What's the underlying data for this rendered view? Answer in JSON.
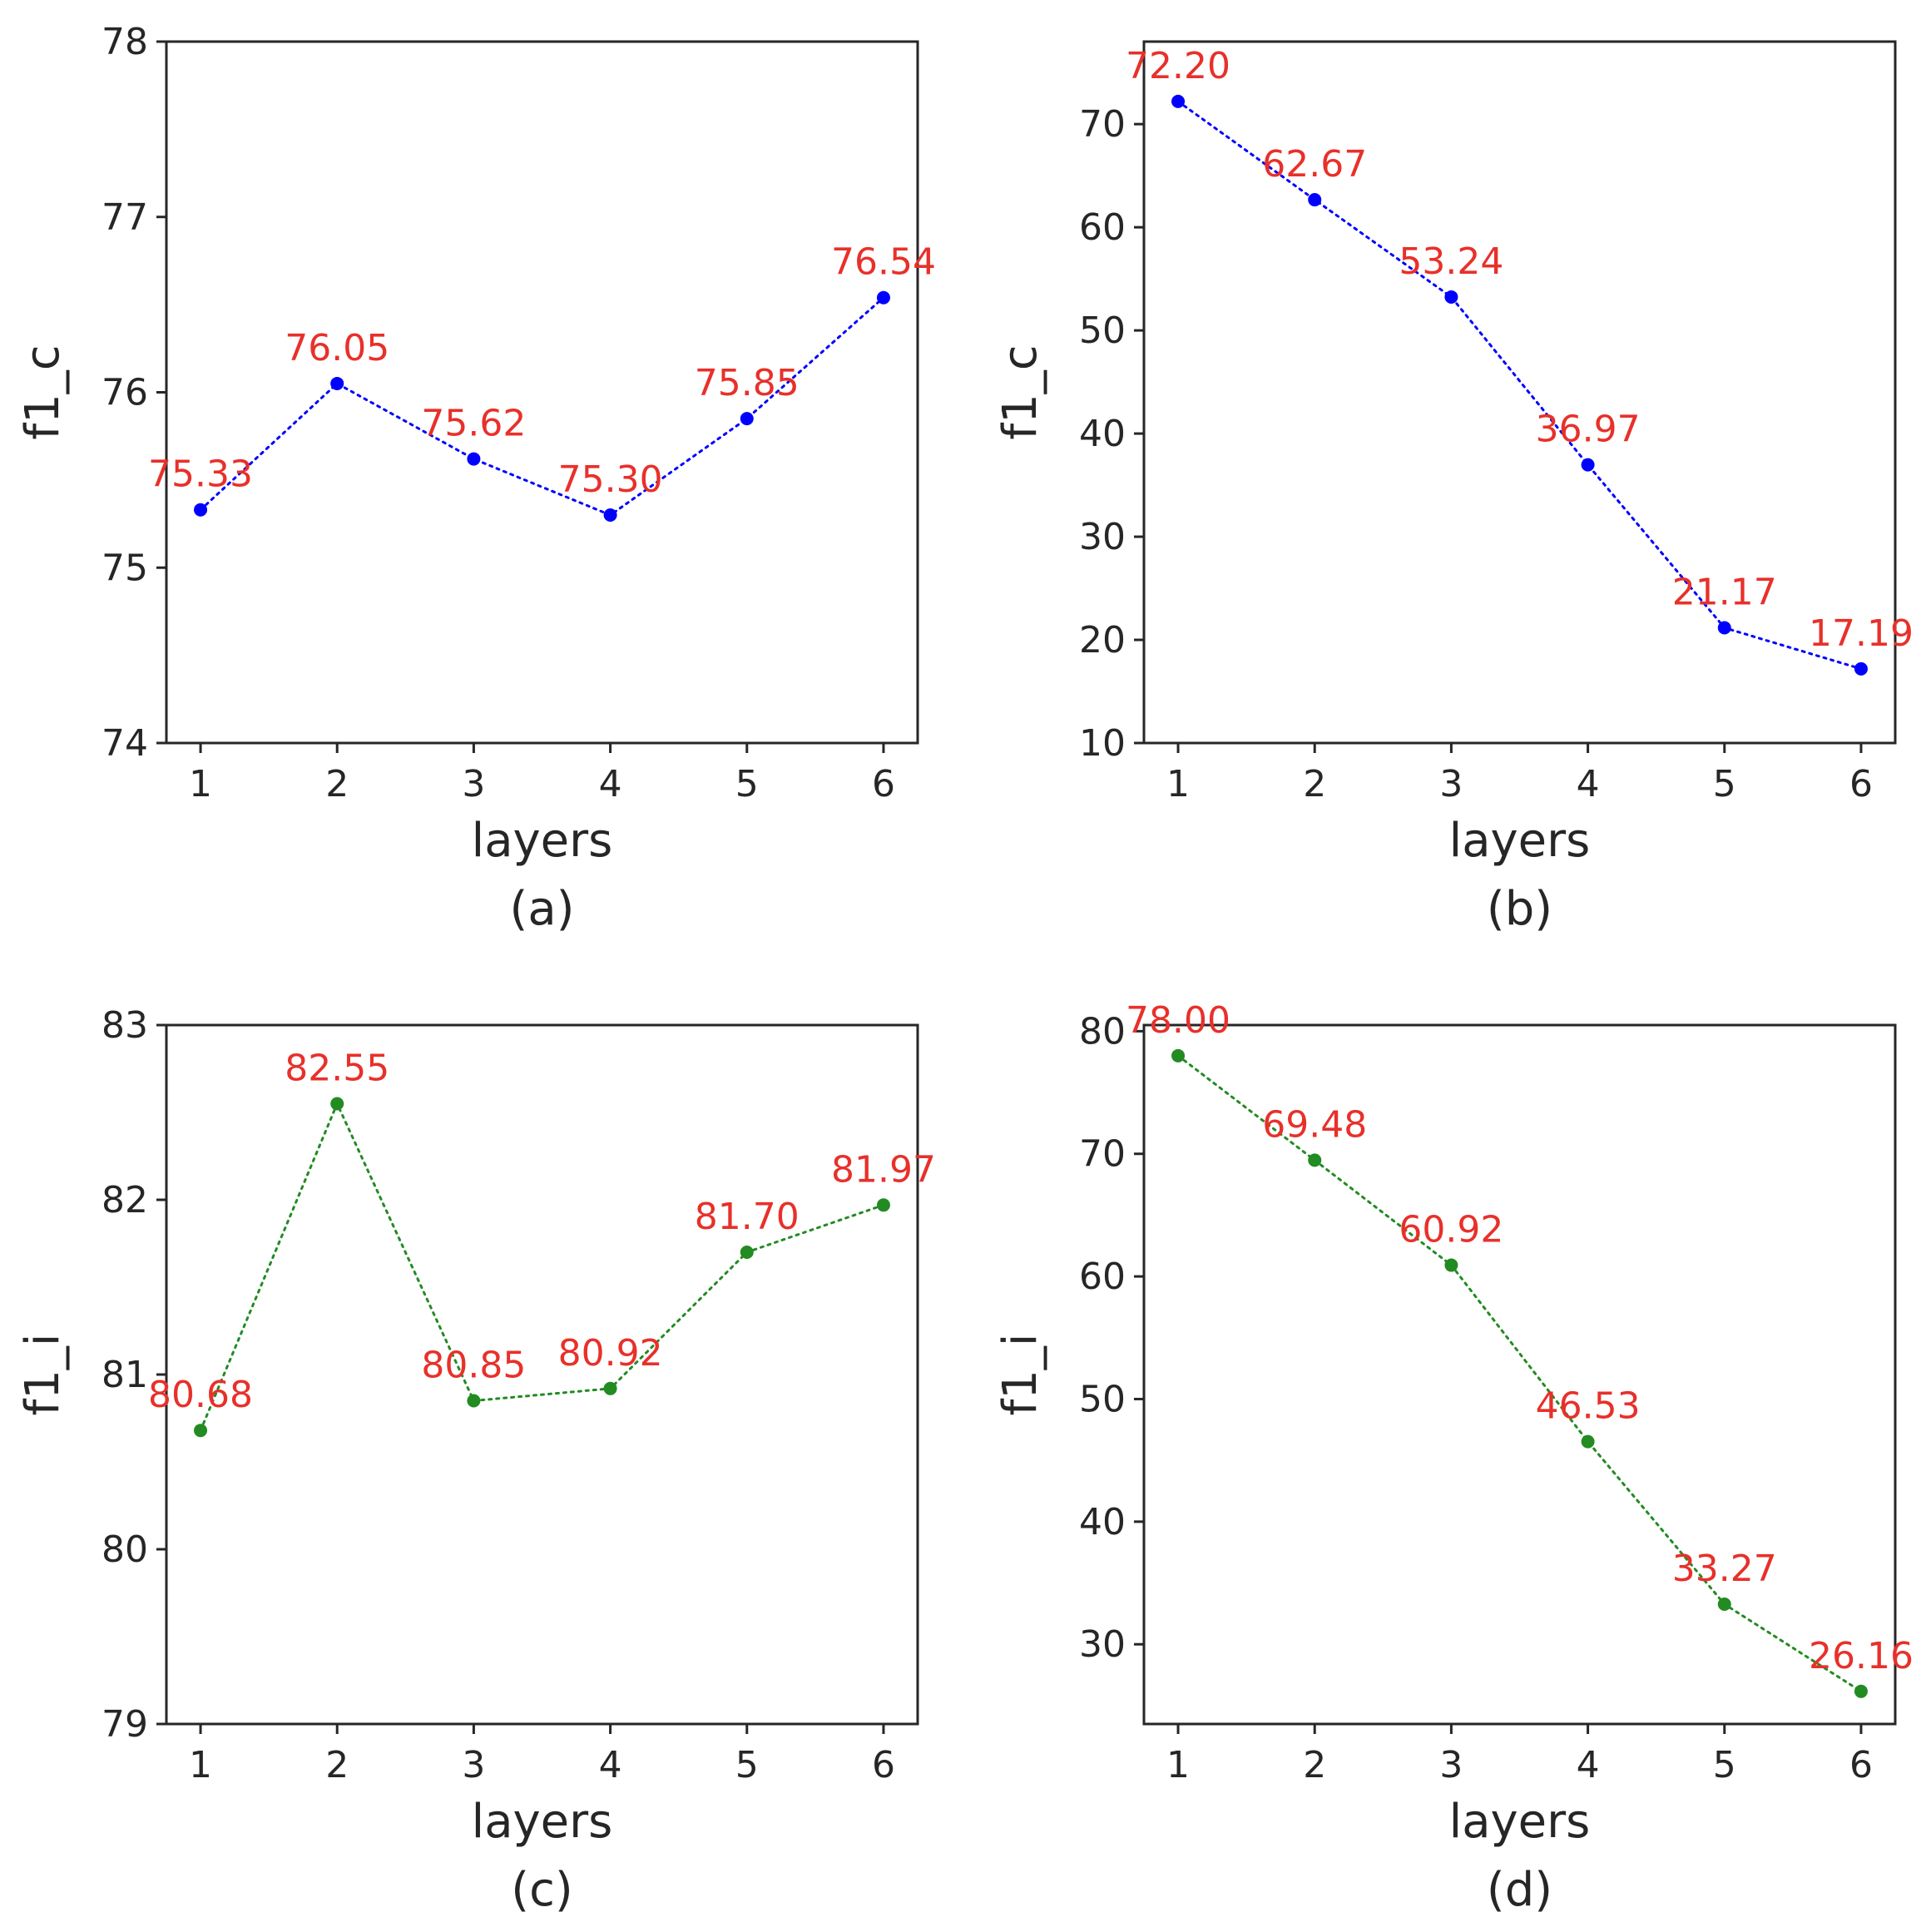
{
  "chart_data": [
    {
      "type": "line",
      "caption": "(a)",
      "xlabel": "layers",
      "ylabel": "f1_c",
      "x": [
        1,
        2,
        3,
        4,
        5,
        6
      ],
      "xticks": [
        "1",
        "2",
        "3",
        "4",
        "5",
        "6"
      ],
      "values": [
        75.33,
        76.05,
        75.62,
        75.3,
        75.85,
        76.54
      ],
      "data_labels": [
        "75.33",
        "76.05",
        "75.62",
        "75.30",
        "75.85",
        "76.54"
      ],
      "ylim": [
        74,
        78
      ],
      "yticks": [
        74,
        75,
        76,
        77,
        78
      ],
      "ytick_labels": [
        "74",
        "75",
        "76",
        "77",
        "78"
      ],
      "line_color": "#0000ff",
      "line_style": "dotted",
      "marker": "circle"
    },
    {
      "type": "line",
      "caption": "(b)",
      "xlabel": "layers",
      "ylabel": "f1_c",
      "x": [
        1,
        2,
        3,
        4,
        5,
        6
      ],
      "xticks": [
        "1",
        "2",
        "3",
        "4",
        "5",
        "6"
      ],
      "values": [
        72.2,
        62.67,
        53.24,
        36.97,
        21.17,
        17.19
      ],
      "data_labels": [
        "72.20",
        "62.67",
        "53.24",
        "36.97",
        "21.17",
        "17.19"
      ],
      "ylim": [
        10,
        78
      ],
      "yticks": [
        10,
        20,
        30,
        40,
        50,
        60,
        70
      ],
      "ytick_labels": [
        "10",
        "20",
        "30",
        "40",
        "50",
        "60",
        "70"
      ],
      "line_color": "#0000ff",
      "line_style": "dotted",
      "marker": "circle"
    },
    {
      "type": "line",
      "caption": "(c)",
      "xlabel": "layers",
      "ylabel": "f1_i",
      "x": [
        1,
        2,
        3,
        4,
        5,
        6
      ],
      "xticks": [
        "1",
        "2",
        "3",
        "4",
        "5",
        "6"
      ],
      "values": [
        80.68,
        82.55,
        80.85,
        80.92,
        81.7,
        81.97
      ],
      "data_labels": [
        "80.68",
        "82.55",
        "80.85",
        "80.92",
        "81.70",
        "81.97"
      ],
      "ylim": [
        79,
        83
      ],
      "yticks": [
        79,
        80,
        81,
        82,
        83
      ],
      "ytick_labels": [
        "79",
        "80",
        "81",
        "82",
        "83"
      ],
      "line_color": "#228b22",
      "line_style": "dotted",
      "marker": "circle"
    },
    {
      "type": "line",
      "caption": "(d)",
      "xlabel": "layers",
      "ylabel": "f1_i",
      "x": [
        1,
        2,
        3,
        4,
        5,
        6
      ],
      "xticks": [
        "1",
        "2",
        "3",
        "4",
        "5",
        "6"
      ],
      "values": [
        78.0,
        69.48,
        60.92,
        46.53,
        33.27,
        26.16
      ],
      "data_labels": [
        "78.00",
        "69.48",
        "60.92",
        "46.53",
        "33.27",
        "26.16"
      ],
      "ylim": [
        23.5,
        80.5
      ],
      "yticks": [
        30,
        40,
        50,
        60,
        70,
        80
      ],
      "ytick_labels": [
        "30",
        "40",
        "50",
        "60",
        "70",
        "80"
      ],
      "line_color": "#228b22",
      "line_style": "dotted",
      "marker": "circle"
    }
  ]
}
